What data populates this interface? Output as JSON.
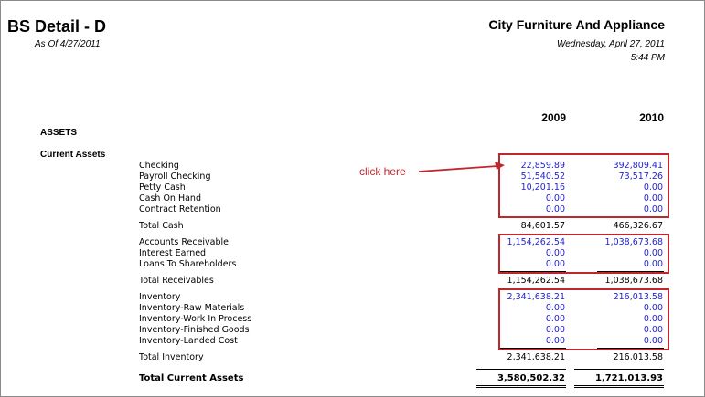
{
  "report": {
    "title": "BS Detail - D",
    "as_of": "As Of 4/27/2011",
    "company": "City Furniture And Appliance",
    "date": "Wednesday, April 27, 2011",
    "time": "5:44 PM"
  },
  "columns": [
    "2009",
    "2010"
  ],
  "sections": {
    "assets": "ASSETS",
    "current_assets": "Current Assets"
  },
  "annotation": {
    "text": "click here",
    "color": "#c0272d"
  },
  "colors": {
    "link": "#1f1fd0",
    "highlight_box": "#c0272d"
  },
  "cash": {
    "rows": [
      {
        "label": "Checking",
        "v2009": "22,859.89",
        "v2010": "392,809.41"
      },
      {
        "label": "Payroll Checking",
        "v2009": "51,540.52",
        "v2010": "73,517.26"
      },
      {
        "label": "Petty Cash",
        "v2009": "10,201.16",
        "v2010": "0.00"
      },
      {
        "label": "Cash On Hand",
        "v2009": "0.00",
        "v2010": "0.00"
      },
      {
        "label": "Contract Retention",
        "v2009": "0.00",
        "v2010": "0.00"
      }
    ],
    "total": {
      "label": "Total Cash",
      "v2009": "84,601.57",
      "v2010": "466,326.67"
    }
  },
  "receivables": {
    "rows": [
      {
        "label": "Accounts Receivable",
        "v2009": "1,154,262.54",
        "v2010": "1,038,673.68"
      },
      {
        "label": "Interest Earned",
        "v2009": "0.00",
        "v2010": "0.00"
      },
      {
        "label": "Loans To Shareholders",
        "v2009": "0.00",
        "v2010": "0.00"
      }
    ],
    "total": {
      "label": "Total Receivables",
      "v2009": "1,154,262.54",
      "v2010": "1,038,673.68"
    }
  },
  "inventory": {
    "rows": [
      {
        "label": "Inventory",
        "v2009": "2,341,638.21",
        "v2010": "216,013.58"
      },
      {
        "label": "Inventory-Raw Materials",
        "v2009": "0.00",
        "v2010": "0.00"
      },
      {
        "label": "Inventory-Work In Process",
        "v2009": "0.00",
        "v2010": "0.00"
      },
      {
        "label": "Inventory-Finished Goods",
        "v2009": "0.00",
        "v2010": "0.00"
      },
      {
        "label": "Inventory-Landed Cost",
        "v2009": "0.00",
        "v2010": "0.00"
      }
    ],
    "total": {
      "label": "Total Inventory",
      "v2009": "2,341,638.21",
      "v2010": "216,013.58"
    }
  },
  "grand_total": {
    "label": "Total Current Assets",
    "v2009": "3,580,502.32",
    "v2010": "1,721,013.93"
  }
}
